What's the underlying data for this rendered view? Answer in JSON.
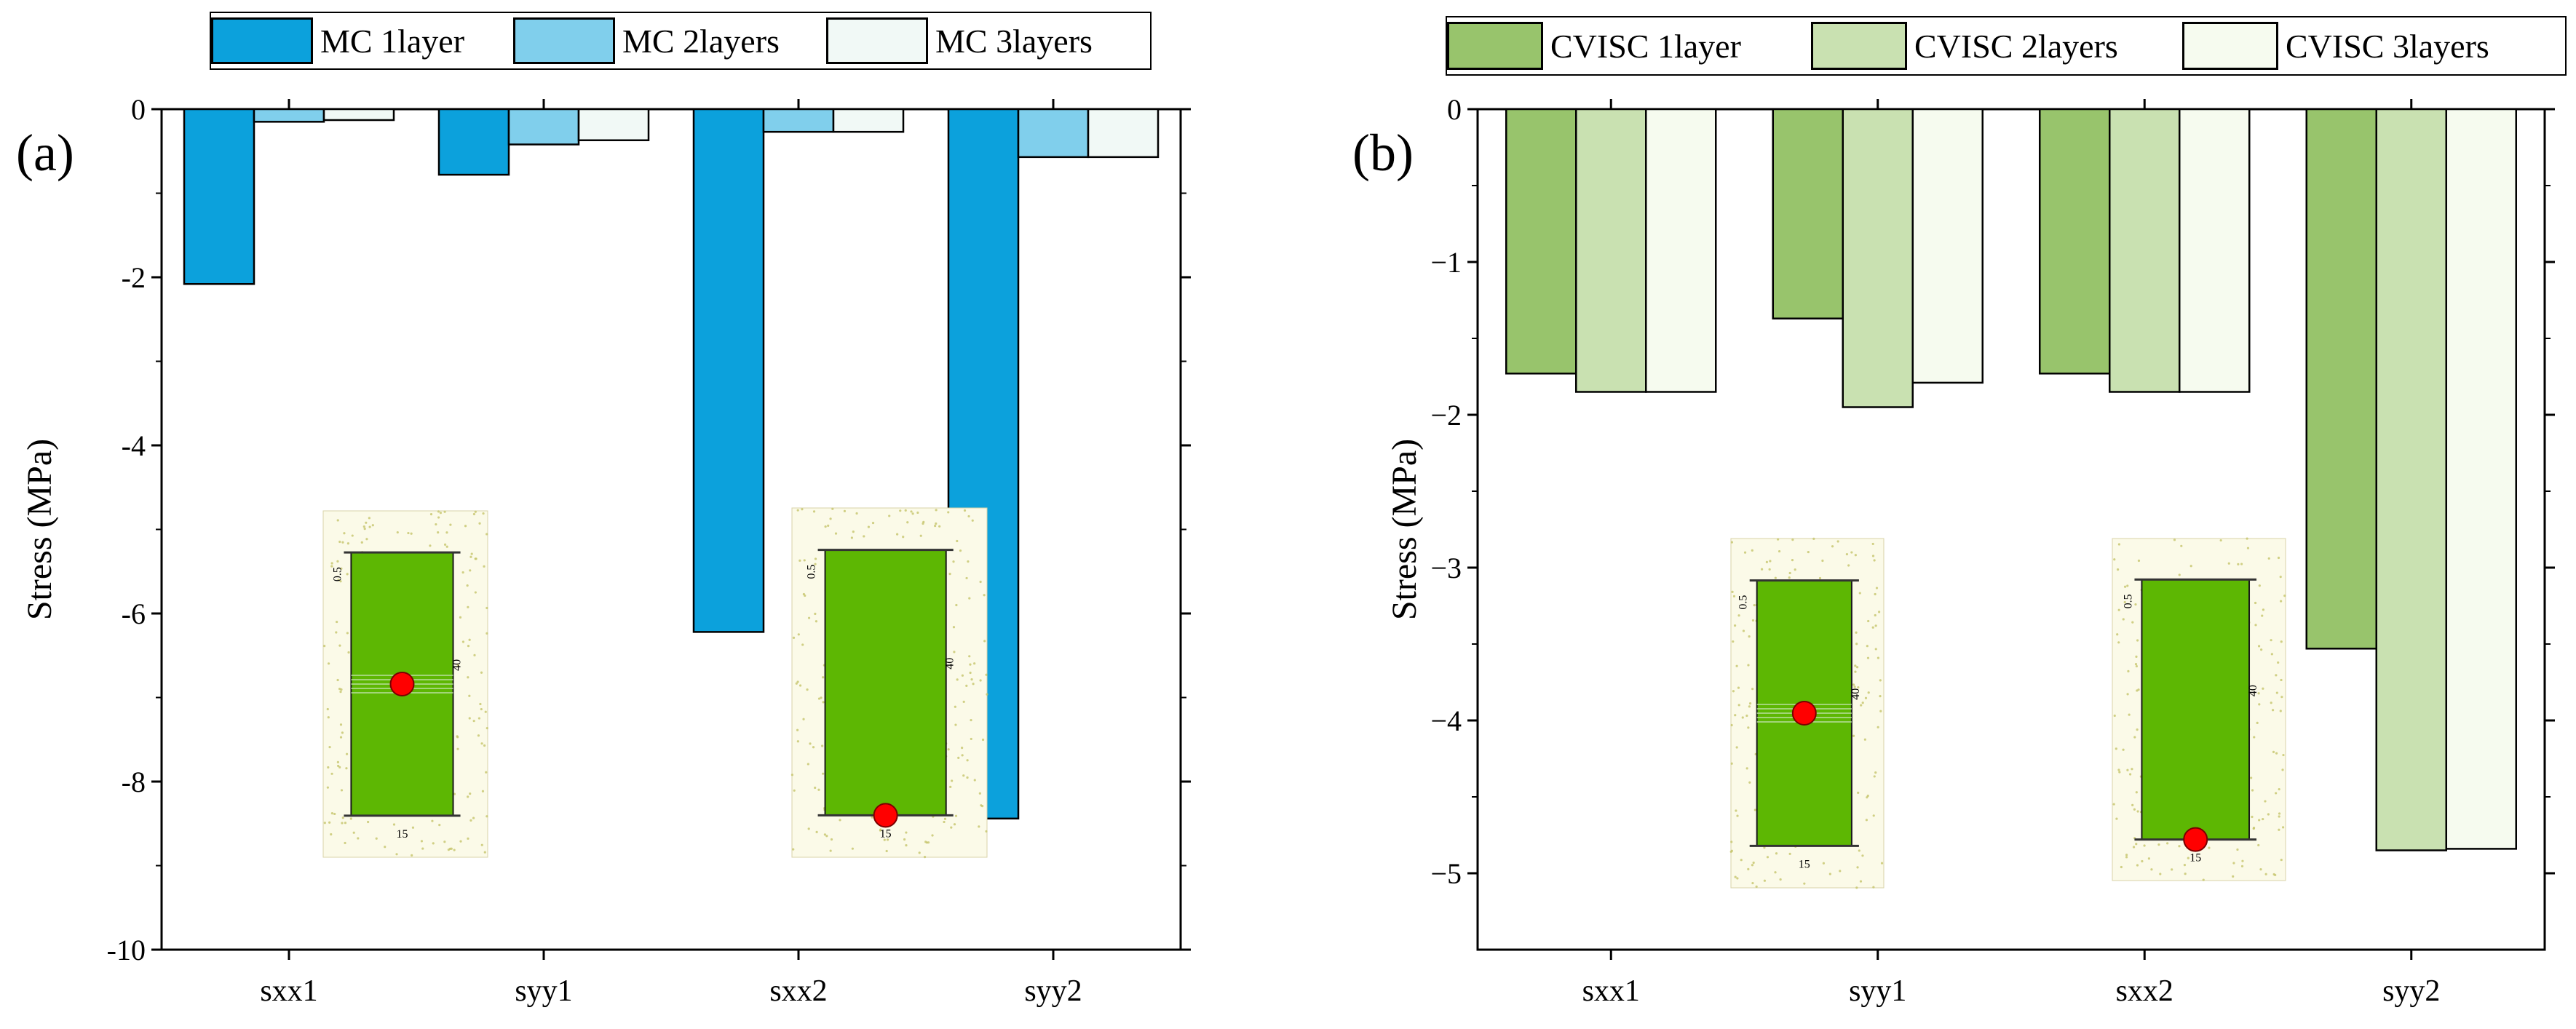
{
  "figure_labels": {
    "a": "(a)",
    "b": "(b)"
  },
  "colors": {
    "mc1": "#0ca1dc",
    "mc2": "#80cfec",
    "mc3": "#f1f9f6",
    "cv1": "#98c46c",
    "cv2": "#c9e1b1",
    "cv3": "#f6fbef",
    "inset_green": "#5db703",
    "inset_sand": "#fbfae8",
    "marker": "#ff0000"
  },
  "chart_data": [
    {
      "type": "bar",
      "title": "",
      "xlabel": "",
      "ylabel": "Stress (MPa)",
      "ylim": [
        -10,
        0
      ],
      "yticks": [
        0,
        -2,
        -4,
        -6,
        -8,
        -10
      ],
      "ytick_labels": [
        "0",
        "-2",
        "-4",
        "-6",
        "-8",
        "-10"
      ],
      "categories": [
        "sxx1",
        "syy1",
        "sxx2",
        "syy2"
      ],
      "series": [
        {
          "name": "MC 1layer",
          "values": [
            -2.08,
            -0.78,
            -6.22,
            -8.44
          ]
        },
        {
          "name": "MC 2layers",
          "values": [
            -0.15,
            -0.42,
            -0.27,
            -0.57
          ]
        },
        {
          "name": "MC 3layers",
          "values": [
            -0.13,
            -0.37,
            -0.27,
            -0.57
          ]
        }
      ],
      "legend_position": "top"
    },
    {
      "type": "bar",
      "title": "",
      "xlabel": "",
      "ylabel": "Stress (MPa)",
      "ylim": [
        -5.5,
        0
      ],
      "yticks": [
        0,
        -1,
        -2,
        -3,
        -4,
        -5
      ],
      "ytick_labels": [
        "0",
        "−1",
        "−2",
        "−3",
        "−4",
        "−5"
      ],
      "categories": [
        "sxx1",
        "syy1",
        "sxx2",
        "syy2"
      ],
      "series": [
        {
          "name": "CVISC 1layer",
          "values": [
            -1.73,
            -1.37,
            -1.73,
            -3.53
          ]
        },
        {
          "name": "CVISC 2layers",
          "values": [
            -1.85,
            -1.95,
            -1.85,
            -4.85
          ]
        },
        {
          "name": "CVISC 3layers",
          "values": [
            -1.85,
            -1.79,
            -1.85,
            -4.84
          ]
        }
      ],
      "legend_position": "top"
    }
  ],
  "insets": [
    {
      "panel": "a",
      "marker": "middle",
      "labels": {
        "top": "0.5",
        "side": "40",
        "bottom": "15"
      }
    },
    {
      "panel": "a",
      "marker": "bottom",
      "labels": {
        "top": "0.5",
        "side": "40",
        "bottom": "15"
      }
    },
    {
      "panel": "b",
      "marker": "middle",
      "labels": {
        "top": "0.5",
        "side": "40",
        "bottom": "15"
      }
    },
    {
      "panel": "b",
      "marker": "bottom",
      "labels": {
        "top": "0.5",
        "side": "40",
        "bottom": "15"
      }
    }
  ]
}
